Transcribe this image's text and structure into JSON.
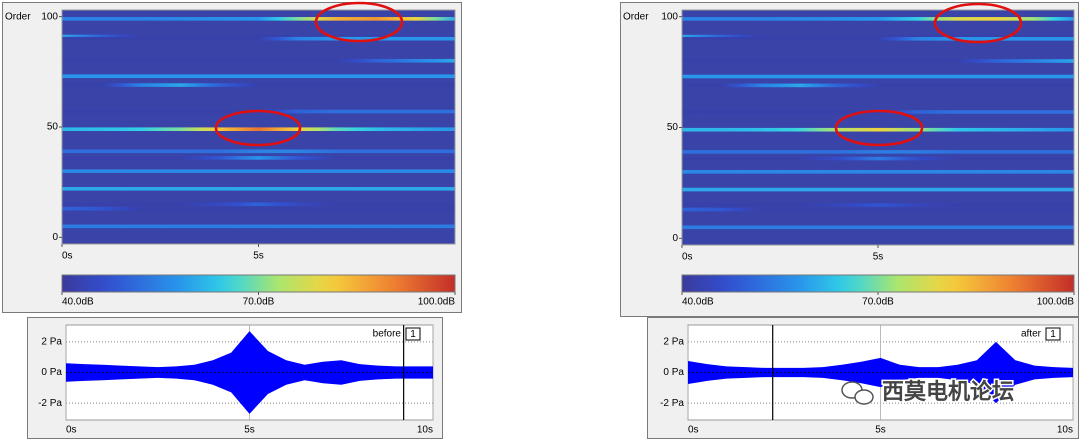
{
  "chart_data": [
    {
      "type": "heatmap",
      "ylabel": "Order",
      "xlim": [
        0,
        10
      ],
      "xticks": [
        {
          "value": 0,
          "label": "0s"
        },
        {
          "value": 5,
          "label": "5s"
        }
      ],
      "ylim": [
        -3,
        103
      ],
      "yticks": [
        0,
        50,
        100
      ],
      "times": [
        0,
        1,
        2,
        3,
        4,
        5,
        6,
        7,
        8,
        9,
        10
      ],
      "orders": [
        99,
        91,
        90,
        80,
        73,
        69,
        57,
        49,
        39,
        36,
        30,
        22,
        15,
        13,
        5
      ],
      "levels": [
        [
          55,
          55,
          55,
          56,
          57,
          58,
          70,
          85,
          88,
          80,
          60
        ],
        [
          60,
          50,
          42,
          42,
          42,
          42,
          42,
          42,
          42,
          42,
          42
        ],
        [
          42,
          42,
          42,
          42,
          42,
          42,
          55,
          58,
          58,
          58,
          58
        ],
        [
          42,
          42,
          42,
          42,
          42,
          42,
          42,
          42,
          50,
          55,
          60
        ],
        [
          58,
          58,
          58,
          58,
          58,
          58,
          58,
          58,
          58,
          58,
          58
        ],
        [
          42,
          42,
          55,
          60,
          50,
          42,
          42,
          42,
          42,
          42,
          42
        ],
        [
          42,
          42,
          42,
          42,
          42,
          42,
          50,
          52,
          52,
          52,
          52
        ],
        [
          62,
          63,
          65,
          70,
          82,
          92,
          80,
          68,
          63,
          60,
          58
        ],
        [
          52,
          52,
          52,
          52,
          52,
          55,
          55,
          52,
          52,
          52,
          52
        ],
        [
          42,
          42,
          42,
          42,
          48,
          58,
          48,
          42,
          42,
          42,
          42
        ],
        [
          56,
          56,
          56,
          56,
          56,
          56,
          56,
          56,
          56,
          56,
          56
        ],
        [
          60,
          60,
          60,
          60,
          60,
          60,
          60,
          60,
          60,
          60,
          60
        ],
        [
          42,
          42,
          42,
          42,
          45,
          50,
          45,
          42,
          42,
          42,
          42
        ],
        [
          50,
          48,
          42,
          42,
          42,
          42,
          42,
          42,
          42,
          42,
          42
        ],
        [
          54,
          54,
          54,
          54,
          54,
          54,
          54,
          54,
          54,
          54,
          54
        ]
      ],
      "clim": [
        40,
        100
      ],
      "colorbar_ticks": [
        {
          "value": 40,
          "label": "40.0dB"
        },
        {
          "value": 70,
          "label": "70.0dB"
        },
        {
          "value": 100,
          "label": "100.0dB"
        }
      ]
    },
    {
      "type": "heatmap",
      "ylabel": "Order",
      "xlim": [
        0,
        10
      ],
      "xticks": [
        {
          "value": 0,
          "label": "0s"
        },
        {
          "value": 5,
          "label": "5s"
        }
      ],
      "ylim": [
        -3,
        103
      ],
      "yticks": [
        0,
        50,
        100
      ],
      "times": [
        0,
        1,
        2,
        3,
        4,
        5,
        6,
        7,
        8,
        9,
        10
      ],
      "orders": [
        99,
        91,
        90,
        80,
        73,
        69,
        57,
        49,
        39,
        36,
        30,
        22,
        15,
        13,
        5
      ],
      "levels": [
        [
          55,
          55,
          55,
          56,
          57,
          58,
          65,
          78,
          80,
          72,
          58
        ],
        [
          60,
          50,
          42,
          42,
          42,
          42,
          42,
          42,
          42,
          42,
          42
        ],
        [
          42,
          42,
          42,
          42,
          42,
          42,
          55,
          58,
          58,
          58,
          58
        ],
        [
          42,
          42,
          42,
          42,
          42,
          42,
          42,
          42,
          50,
          55,
          60
        ],
        [
          58,
          58,
          58,
          58,
          58,
          58,
          58,
          58,
          58,
          58,
          58
        ],
        [
          42,
          42,
          55,
          60,
          50,
          42,
          42,
          42,
          42,
          42,
          42
        ],
        [
          42,
          42,
          42,
          42,
          42,
          42,
          50,
          52,
          52,
          52,
          52
        ],
        [
          62,
          62,
          63,
          66,
          74,
          80,
          72,
          64,
          62,
          60,
          58
        ],
        [
          52,
          52,
          52,
          52,
          52,
          54,
          54,
          52,
          52,
          52,
          52
        ],
        [
          42,
          42,
          42,
          42,
          46,
          54,
          46,
          42,
          42,
          42,
          42
        ],
        [
          56,
          56,
          56,
          56,
          56,
          56,
          56,
          56,
          56,
          56,
          56
        ],
        [
          60,
          60,
          60,
          60,
          60,
          60,
          60,
          60,
          60,
          60,
          60
        ],
        [
          42,
          42,
          42,
          42,
          44,
          48,
          44,
          42,
          42,
          42,
          42
        ],
        [
          50,
          48,
          42,
          42,
          42,
          42,
          42,
          42,
          42,
          42,
          42
        ],
        [
          54,
          54,
          54,
          54,
          54,
          54,
          54,
          54,
          54,
          54,
          54
        ]
      ],
      "clim": [
        40,
        100
      ],
      "colorbar_ticks": [
        {
          "value": 40,
          "label": "40.0dB"
        },
        {
          "value": 70,
          "label": "70.0dB"
        },
        {
          "value": 100,
          "label": "100.0dB"
        }
      ]
    },
    {
      "type": "area",
      "trace_label": "1",
      "x": [
        0,
        0.5,
        1,
        1.5,
        2,
        2.5,
        3,
        3.5,
        4,
        4.5,
        5,
        5.5,
        6,
        6.5,
        7,
        7.5,
        8,
        8.5,
        9,
        9.5,
        10
      ],
      "series": [
        {
          "name": "before",
          "color": "#0000ff",
          "values": [
            0.6,
            0.55,
            0.5,
            0.45,
            0.4,
            0.35,
            0.4,
            0.5,
            0.8,
            1.3,
            2.7,
            1.4,
            0.8,
            0.5,
            0.7,
            0.8,
            0.55,
            0.45,
            0.4,
            0.4,
            0.4
          ]
        }
      ],
      "xlim": [
        0,
        10
      ],
      "xticks": [
        {
          "value": 0,
          "label": "0s"
        },
        {
          "value": 5,
          "label": "5s"
        },
        {
          "value": 10,
          "label": "10s"
        }
      ],
      "ylim": [
        -3.1,
        3.1
      ],
      "yticks": [
        {
          "value": 2,
          "label": "2 Pa"
        },
        {
          "value": 0,
          "label": "0 Pa"
        },
        {
          "value": -2,
          "label": "-2 Pa"
        }
      ],
      "cursors": [
        9.2
      ]
    },
    {
      "type": "area",
      "trace_label": "1",
      "x": [
        0,
        0.5,
        1,
        1.5,
        2,
        2.5,
        3,
        3.5,
        4,
        4.5,
        5,
        5.5,
        6,
        6.5,
        7,
        7.5,
        8,
        8.5,
        9,
        9.5,
        10
      ],
      "series": [
        {
          "name": "after",
          "color": "#0000ff",
          "values": [
            0.75,
            0.55,
            0.4,
            0.35,
            0.3,
            0.3,
            0.3,
            0.35,
            0.5,
            0.7,
            0.95,
            0.5,
            0.35,
            0.35,
            0.5,
            0.8,
            2.0,
            0.8,
            0.45,
            0.35,
            0.3
          ]
        }
      ],
      "xlim": [
        0,
        10
      ],
      "xticks": [
        {
          "value": 0,
          "label": "0s"
        },
        {
          "value": 5,
          "label": "5s"
        },
        {
          "value": 10,
          "label": "10s"
        }
      ],
      "ylim": [
        -3.1,
        3.1
      ],
      "yticks": [
        {
          "value": 2,
          "label": "2 Pa"
        },
        {
          "value": 0,
          "label": "0 Pa"
        },
        {
          "value": -2,
          "label": "-2 Pa"
        }
      ],
      "cursors": [
        2.2
      ]
    }
  ],
  "watermark": "西莫电机论坛"
}
